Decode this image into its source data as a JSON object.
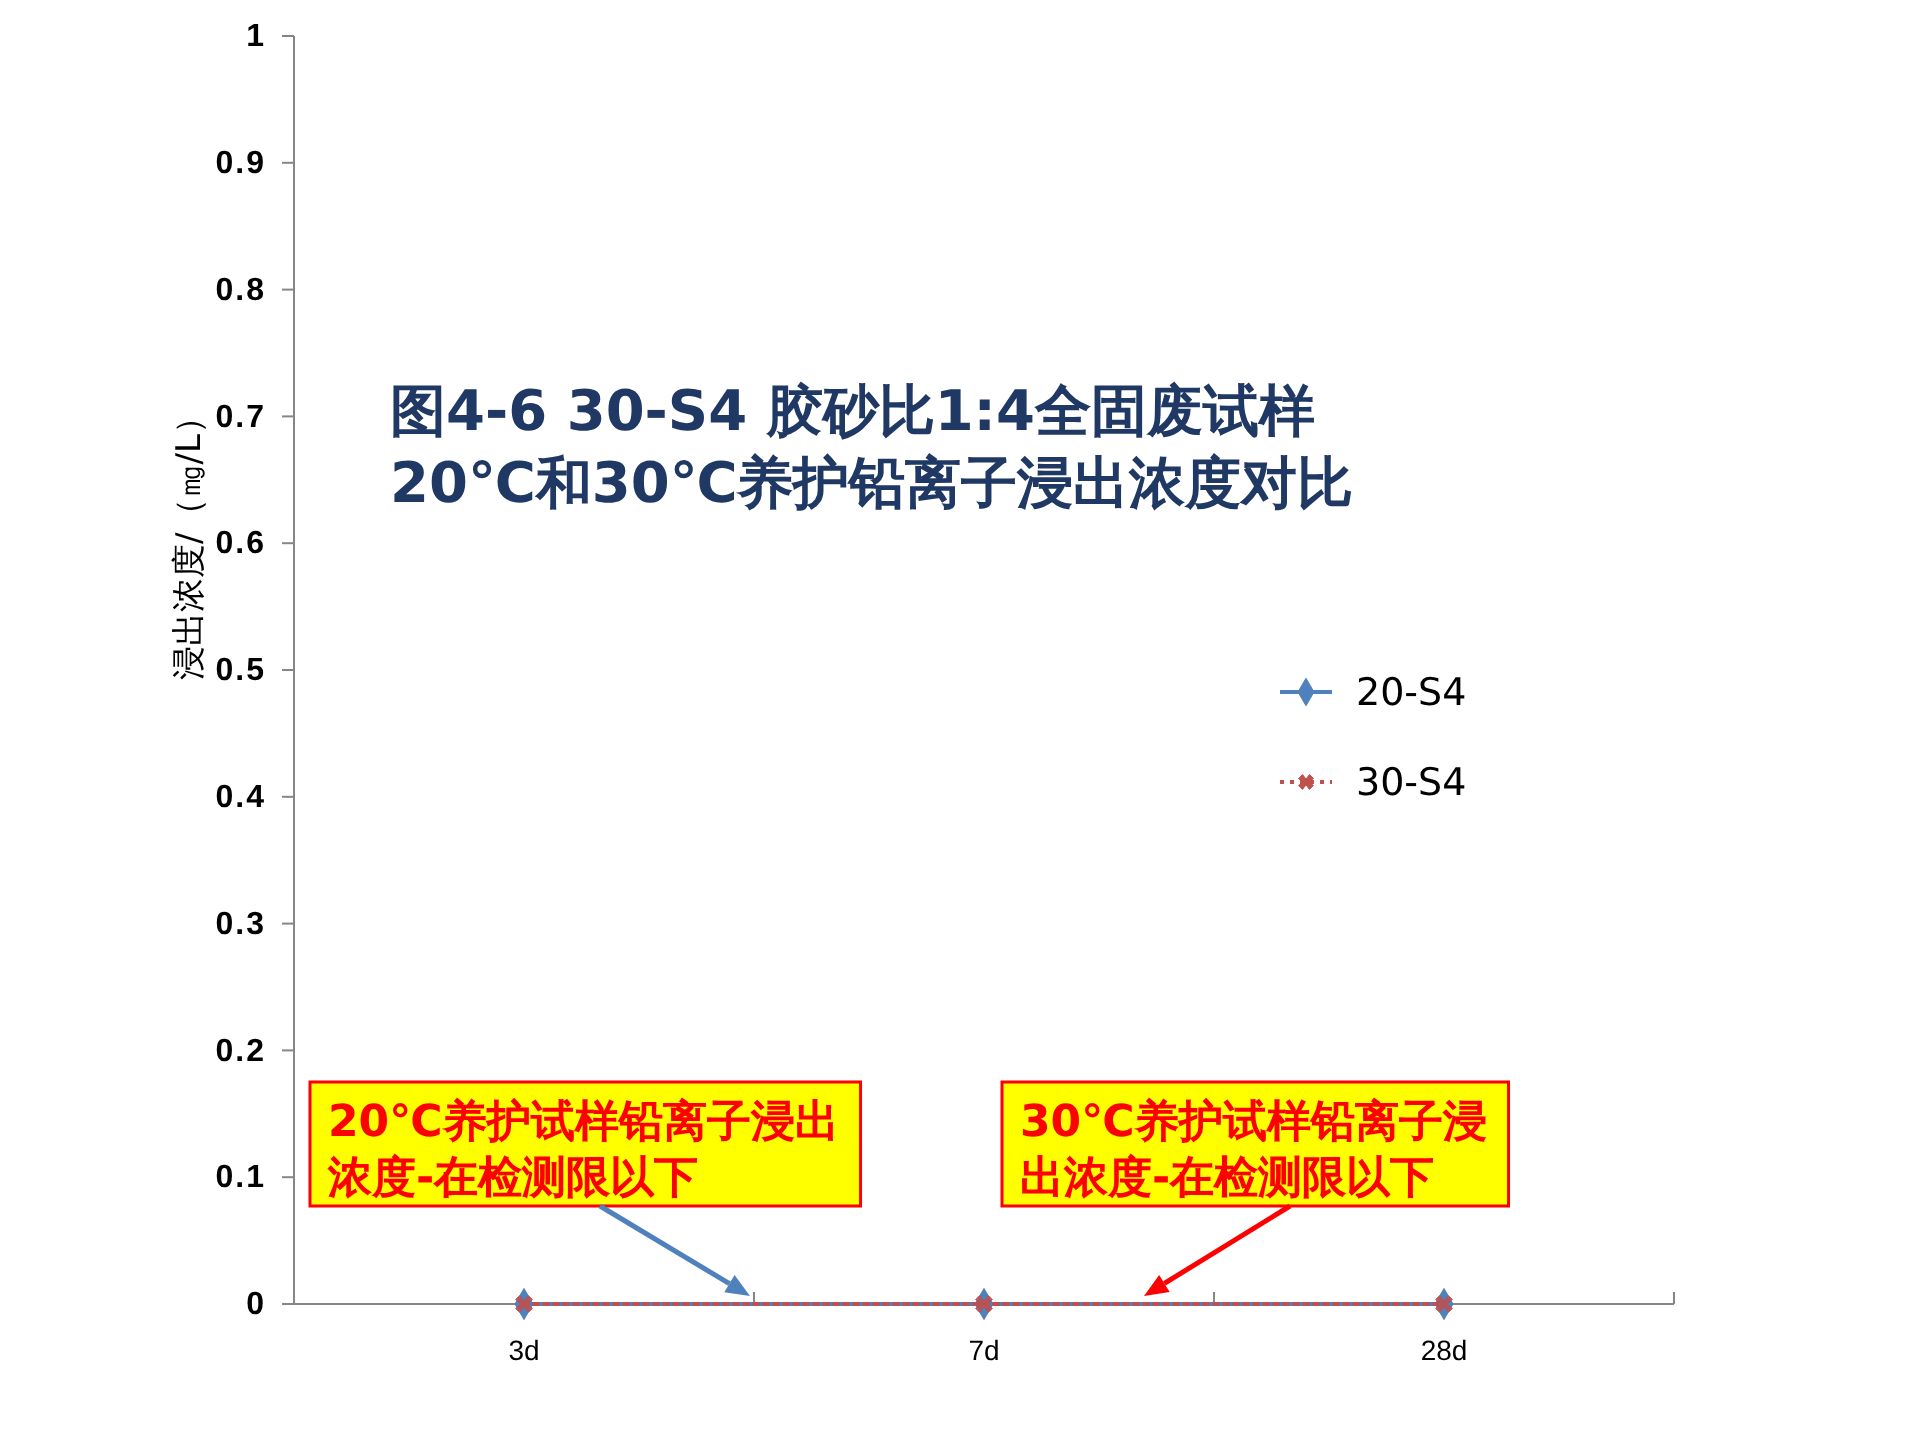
{
  "chart_data": {
    "type": "line",
    "title": "图4-6 30-S4 胶砂比1:4全固废试样\n20℃和30℃养护铅离子浸出浓度对比",
    "ylabel": "浸出浓度/（㎎/L）",
    "categories": [
      "3d",
      "7d",
      "28d"
    ],
    "series": [
      {
        "name": "20-S4",
        "color": "#4f81bd",
        "values": [
          0,
          0,
          0
        ],
        "marker": "diamond",
        "line_style": "solid"
      },
      {
        "name": "30-S4",
        "color": "#c0504d",
        "values": [
          0,
          0,
          0
        ],
        "marker": "cross",
        "line_style": "dotted"
      }
    ],
    "ylim": [
      0,
      1
    ],
    "yticks": [
      0,
      0.1,
      0.2,
      0.3,
      0.4,
      0.5,
      0.6,
      0.7,
      0.8,
      0.9,
      1
    ],
    "legend": "right",
    "annotations": [
      {
        "text": "20℃养护试样铅离子浸出浓度-在检测限以下",
        "y": 0
      },
      {
        "text": "30℃养护试样铅离子浸出浓度-在检测限以下",
        "y": 0
      }
    ]
  }
}
